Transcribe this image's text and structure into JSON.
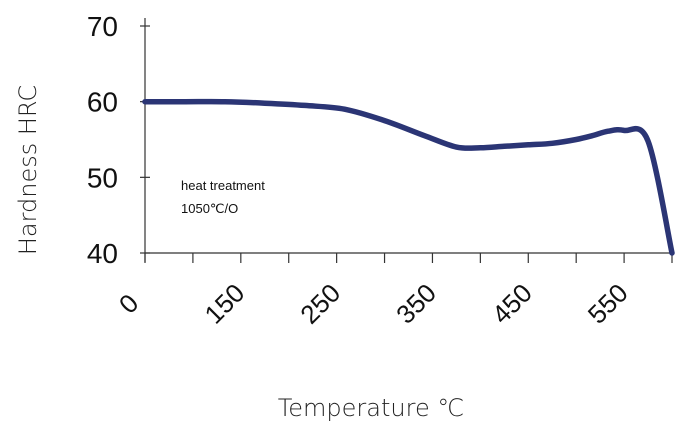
{
  "chart_data": {
    "type": "line",
    "xlabel": "Temperature ℃",
    "ylabel": "Hardness HRC",
    "ylim": [
      40,
      70
    ],
    "yticks": [
      "40",
      "50",
      "60",
      "70"
    ],
    "xtick_labels": [
      "0",
      "150",
      "250",
      "350",
      "450",
      "550"
    ],
    "annotation": [
      "heat treatment",
      "1050℃/O"
    ],
    "grid": false,
    "series": [
      {
        "color": "#2b3575",
        "x": [
          0,
          50,
          100,
          150,
          200,
          250,
          300,
          350,
          390,
          420,
          450,
          480,
          510,
          540,
          560,
          580,
          600,
          630,
          660
        ],
        "values": [
          60,
          60,
          60,
          59.8,
          59.5,
          59,
          57.5,
          55.5,
          54,
          53.9,
          54.1,
          54.3,
          54.5,
          55,
          55.5,
          56.1,
          56.2,
          54.8,
          40
        ]
      }
    ]
  }
}
